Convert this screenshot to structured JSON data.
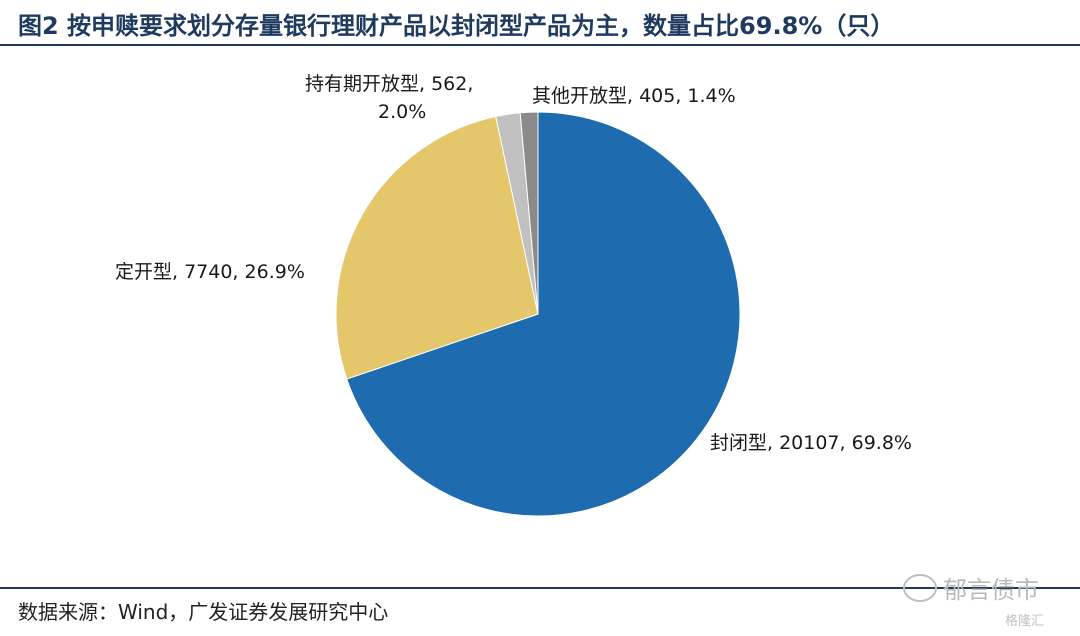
{
  "title": "图2 按申赎要求划分存量银行理财产品以封闭型产品为主，数量占比69.8%（只）",
  "source": "数据来源：Wind，广发证券发展研究中心",
  "watermark": "郁言债市",
  "watermark_small": "格隆汇",
  "chart_data": {
    "type": "pie",
    "title": "图2 按申赎要求划分存量银行理财产品以封闭型产品为主，数量占比69.8%（只）",
    "slices": [
      {
        "name": "封闭型",
        "value": 20107,
        "percent": "69.8%",
        "color": "#1f6bb0"
      },
      {
        "name": "定开型",
        "value": 7740,
        "percent": "26.9%",
        "color": "#e4c76a"
      },
      {
        "name": "持有期开放型",
        "value": 562,
        "percent": "2.0%",
        "color": "#c0c0c0"
      },
      {
        "name": "其他开放型",
        "value": 405,
        "percent": "1.4%",
        "color": "#8a8a8a"
      }
    ],
    "labels": [
      {
        "line1": "封闭型, 20107, 69.8%",
        "line2": ""
      },
      {
        "line1": "定开型, 7740, 26.9%",
        "line2": ""
      },
      {
        "line1": "持有期开放型, 562,",
        "line2": "2.0%"
      },
      {
        "line1": "其他开放型, 405, 1.4%",
        "line2": ""
      }
    ]
  }
}
